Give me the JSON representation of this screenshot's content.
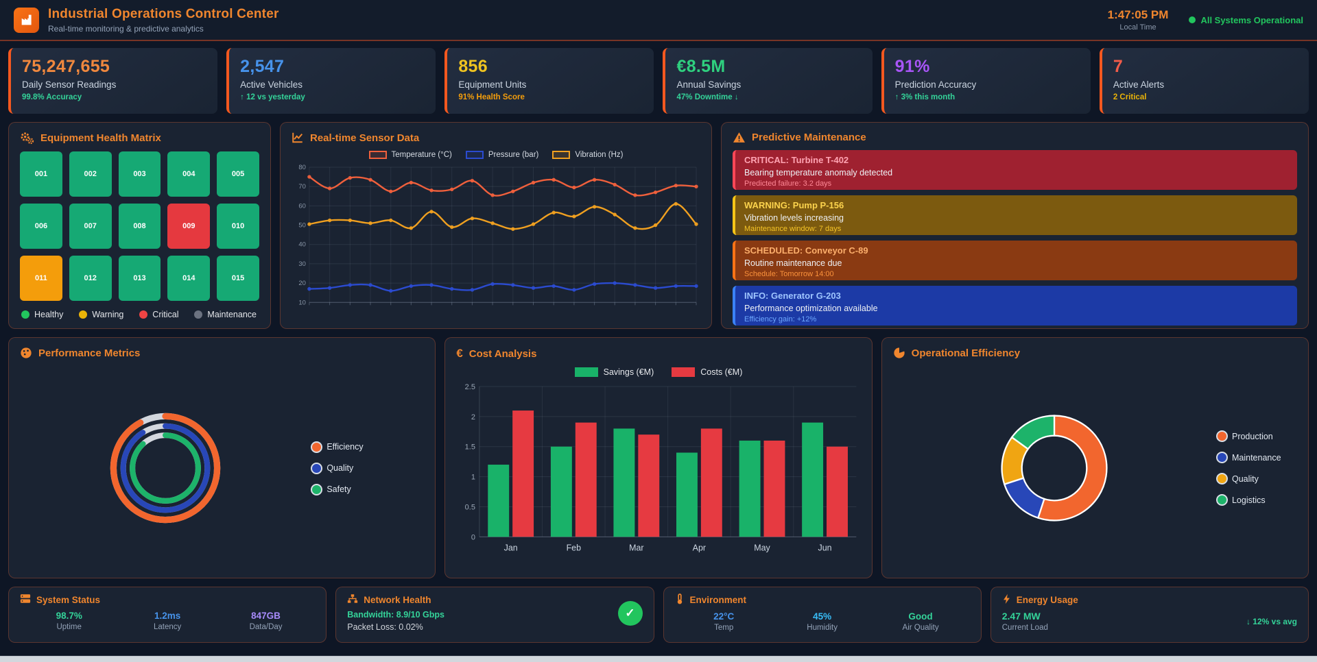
{
  "header": {
    "title": "Industrial Operations Control Center",
    "subtitle": "Real-time monitoring & predictive analytics",
    "clock": "1:47:05 PM",
    "clock_label": "Local Time",
    "status": "All Systems Operational",
    "status_color": "#22c55e",
    "accent_color": "#f0862e"
  },
  "kpis": [
    {
      "value": "75,247,655",
      "label": "Daily Sensor Readings",
      "sub": "99.8% Accuracy",
      "color": "#f0883e",
      "sub_color": "#34d399"
    },
    {
      "value": "2,547",
      "label": "Active Vehicles",
      "sub": "↑ 12 vs yesterday",
      "color": "#4793eb",
      "sub_color": "#34d399"
    },
    {
      "value": "856",
      "label": "Equipment Units",
      "sub": "91% Health Score",
      "color": "#f0c420",
      "sub_color": "#f59e0b"
    },
    {
      "value": "€8.5M",
      "label": "Annual Savings",
      "sub": "47% Downtime ↓",
      "color": "#2fd07f",
      "sub_color": "#34d399"
    },
    {
      "value": "91%",
      "label": "Prediction Accuracy",
      "sub": "↑ 3% this month",
      "color": "#a855f7",
      "sub_color": "#34d399"
    },
    {
      "value": "7",
      "label": "Active Alerts",
      "sub": "2 Critical",
      "color": "#f25c4a",
      "sub_color": "#eab308"
    }
  ],
  "matrix": {
    "title": "Equipment Health Matrix",
    "status_colors": {
      "healthy": "#16a974",
      "warning": "#f49d0b",
      "critical": "#e5393f",
      "maintenance": "#6b7280"
    },
    "tiles": [
      {
        "id": "001",
        "status": "healthy"
      },
      {
        "id": "002",
        "status": "healthy"
      },
      {
        "id": "003",
        "status": "healthy"
      },
      {
        "id": "004",
        "status": "healthy"
      },
      {
        "id": "005",
        "status": "healthy"
      },
      {
        "id": "006",
        "status": "healthy"
      },
      {
        "id": "007",
        "status": "healthy"
      },
      {
        "id": "008",
        "status": "healthy"
      },
      {
        "id": "009",
        "status": "critical"
      },
      {
        "id": "010",
        "status": "healthy"
      },
      {
        "id": "011",
        "status": "warning"
      },
      {
        "id": "012",
        "status": "healthy"
      },
      {
        "id": "013",
        "status": "healthy"
      },
      {
        "id": "014",
        "status": "healthy"
      },
      {
        "id": "015",
        "status": "healthy"
      }
    ],
    "legend": [
      {
        "label": "Healthy",
        "color": "#22c55e"
      },
      {
        "label": "Warning",
        "color": "#eab308"
      },
      {
        "label": "Critical",
        "color": "#ef4444"
      },
      {
        "label": "Maintenance",
        "color": "#6b7280"
      }
    ]
  },
  "alerts": {
    "title": "Predictive Maintenance",
    "items": [
      {
        "title": "CRITICAL: Turbine T-402",
        "desc": "Bearing temperature anomaly detected",
        "meta": "Predicted failure: 3.2 days",
        "bg": "#9f2130",
        "border": "#ff4757",
        "title_color": "#ffa3b2",
        "meta_color": "#ff8896"
      },
      {
        "title": "WARNING: Pump P-156",
        "desc": "Vibration levels increasing",
        "meta": "Maintenance window: 7 days",
        "bg": "#7c5a0f",
        "border": "#f5c518",
        "title_color": "#fcd34d",
        "meta_color": "#f5c427"
      },
      {
        "title": "SCHEDULED: Conveyor C-89",
        "desc": "Routine maintenance due",
        "meta": "Schedule: Tomorrow 14:00",
        "bg": "#8a3a12",
        "border": "#f97316",
        "title_color": "#fcae6b",
        "meta_color": "#fb923c"
      },
      {
        "title": "INFO: Generator G-203",
        "desc": "Performance optimization available",
        "meta": "Efficiency gain: +12%",
        "bg": "#1c3aa6",
        "border": "#3b82f6",
        "title_color": "#9ec5ff",
        "meta_color": "#6ea8fe"
      }
    ]
  },
  "chart_data": [
    {
      "id": "sensor",
      "type": "line",
      "title": "Real-time Sensor Data",
      "x": [
        1,
        2,
        3,
        4,
        5,
        6,
        7,
        8,
        9,
        10,
        11,
        12,
        13,
        14,
        15,
        16,
        17,
        18,
        19,
        20
      ],
      "ylim": [
        10,
        80
      ],
      "yticks": [
        10,
        20,
        30,
        40,
        50,
        60,
        70,
        80
      ],
      "grid": true,
      "legend_position": "top",
      "series": [
        {
          "name": "Temperature (°C)",
          "color": "#f0603c",
          "values": [
            75,
            69,
            74.5,
            73.5,
            67.5,
            72,
            68,
            68.5,
            73,
            65.5,
            67.5,
            72,
            73.5,
            69.5,
            73.5,
            71,
            65.5,
            67,
            70.5,
            70
          ]
        },
        {
          "name": "Pressure (bar)",
          "color": "#2b4bd0",
          "values": [
            17,
            17.5,
            19,
            19,
            16,
            18.5,
            19,
            17,
            16.5,
            19.5,
            19,
            17.5,
            18.5,
            16.5,
            19.5,
            20,
            19,
            17.5,
            18.5,
            18.5
          ]
        },
        {
          "name": "Vibration (Hz)",
          "color": "#f0a020",
          "values": [
            50.5,
            52.5,
            52.5,
            51,
            52.5,
            48.5,
            57,
            49,
            53.5,
            51,
            48,
            50.5,
            56.5,
            54.5,
            59.5,
            55.5,
            48.5,
            50,
            61,
            50.5
          ]
        }
      ]
    },
    {
      "id": "cost",
      "type": "bar",
      "title": "Cost Analysis",
      "categories": [
        "Jan",
        "Feb",
        "Mar",
        "Apr",
        "May",
        "Jun"
      ],
      "ylim": [
        0,
        2.5
      ],
      "yticks": [
        0,
        0.5,
        1.0,
        1.5,
        2.0,
        2.5
      ],
      "grid": true,
      "legend_position": "top",
      "series": [
        {
          "name": "Savings (€M)",
          "color": "#19b269",
          "values": [
            1.2,
            1.5,
            1.8,
            1.4,
            1.6,
            1.9
          ]
        },
        {
          "name": "Costs (€M)",
          "color": "#e63a41",
          "values": [
            2.1,
            1.9,
            1.7,
            1.8,
            1.6,
            1.5
          ]
        }
      ]
    },
    {
      "id": "performance",
      "type": "ring",
      "title": "Performance Metrics",
      "track_color": "#d3d7de",
      "legend_position": "right",
      "series": [
        {
          "name": "Efficiency",
          "color": "#f2662e",
          "value": 92
        },
        {
          "name": "Quality",
          "color": "#2847b8",
          "value": 91
        },
        {
          "name": "Safety",
          "color": "#1db36a",
          "value": 88
        }
      ]
    },
    {
      "id": "efficiency",
      "type": "pie",
      "title": "Operational Efficiency",
      "legend_position": "right",
      "slices": [
        {
          "name": "Production",
          "color": "#f2662e",
          "value": 55
        },
        {
          "name": "Maintenance",
          "color": "#2847b8",
          "value": 15
        },
        {
          "name": "Quality",
          "color": "#f0a512",
          "value": 15
        },
        {
          "name": "Logistics",
          "color": "#1db36a",
          "value": 15
        }
      ]
    }
  ],
  "system_status": {
    "title": "System Status",
    "stats": [
      {
        "value": "98.7%",
        "label": "Uptime",
        "color": "#34d399"
      },
      {
        "value": "1.2ms",
        "label": "Latency",
        "color": "#4793eb"
      },
      {
        "value": "847GB",
        "label": "Data/Day",
        "color": "#a78bfa"
      }
    ]
  },
  "network": {
    "title": "Network Health",
    "line1": "Bandwidth: 8.9/10 Gbps",
    "line1_color": "#34d399",
    "line2": "Packet Loss: 0.02%",
    "ok_mark": "✓",
    "ok_color": "#22c55e"
  },
  "environment": {
    "title": "Environment",
    "stats": [
      {
        "value": "22°C",
        "label": "Temp",
        "color": "#4793eb"
      },
      {
        "value": "45%",
        "label": "Humidity",
        "color": "#38bdf8"
      },
      {
        "value": "Good",
        "label": "Air Quality",
        "color": "#34d399"
      }
    ]
  },
  "energy": {
    "title": "Energy Usage",
    "value": "2.47 MW",
    "label": "Current Load",
    "value_color": "#34d399",
    "trend": "↓ 12% vs avg",
    "trend_color": "#34d399"
  }
}
